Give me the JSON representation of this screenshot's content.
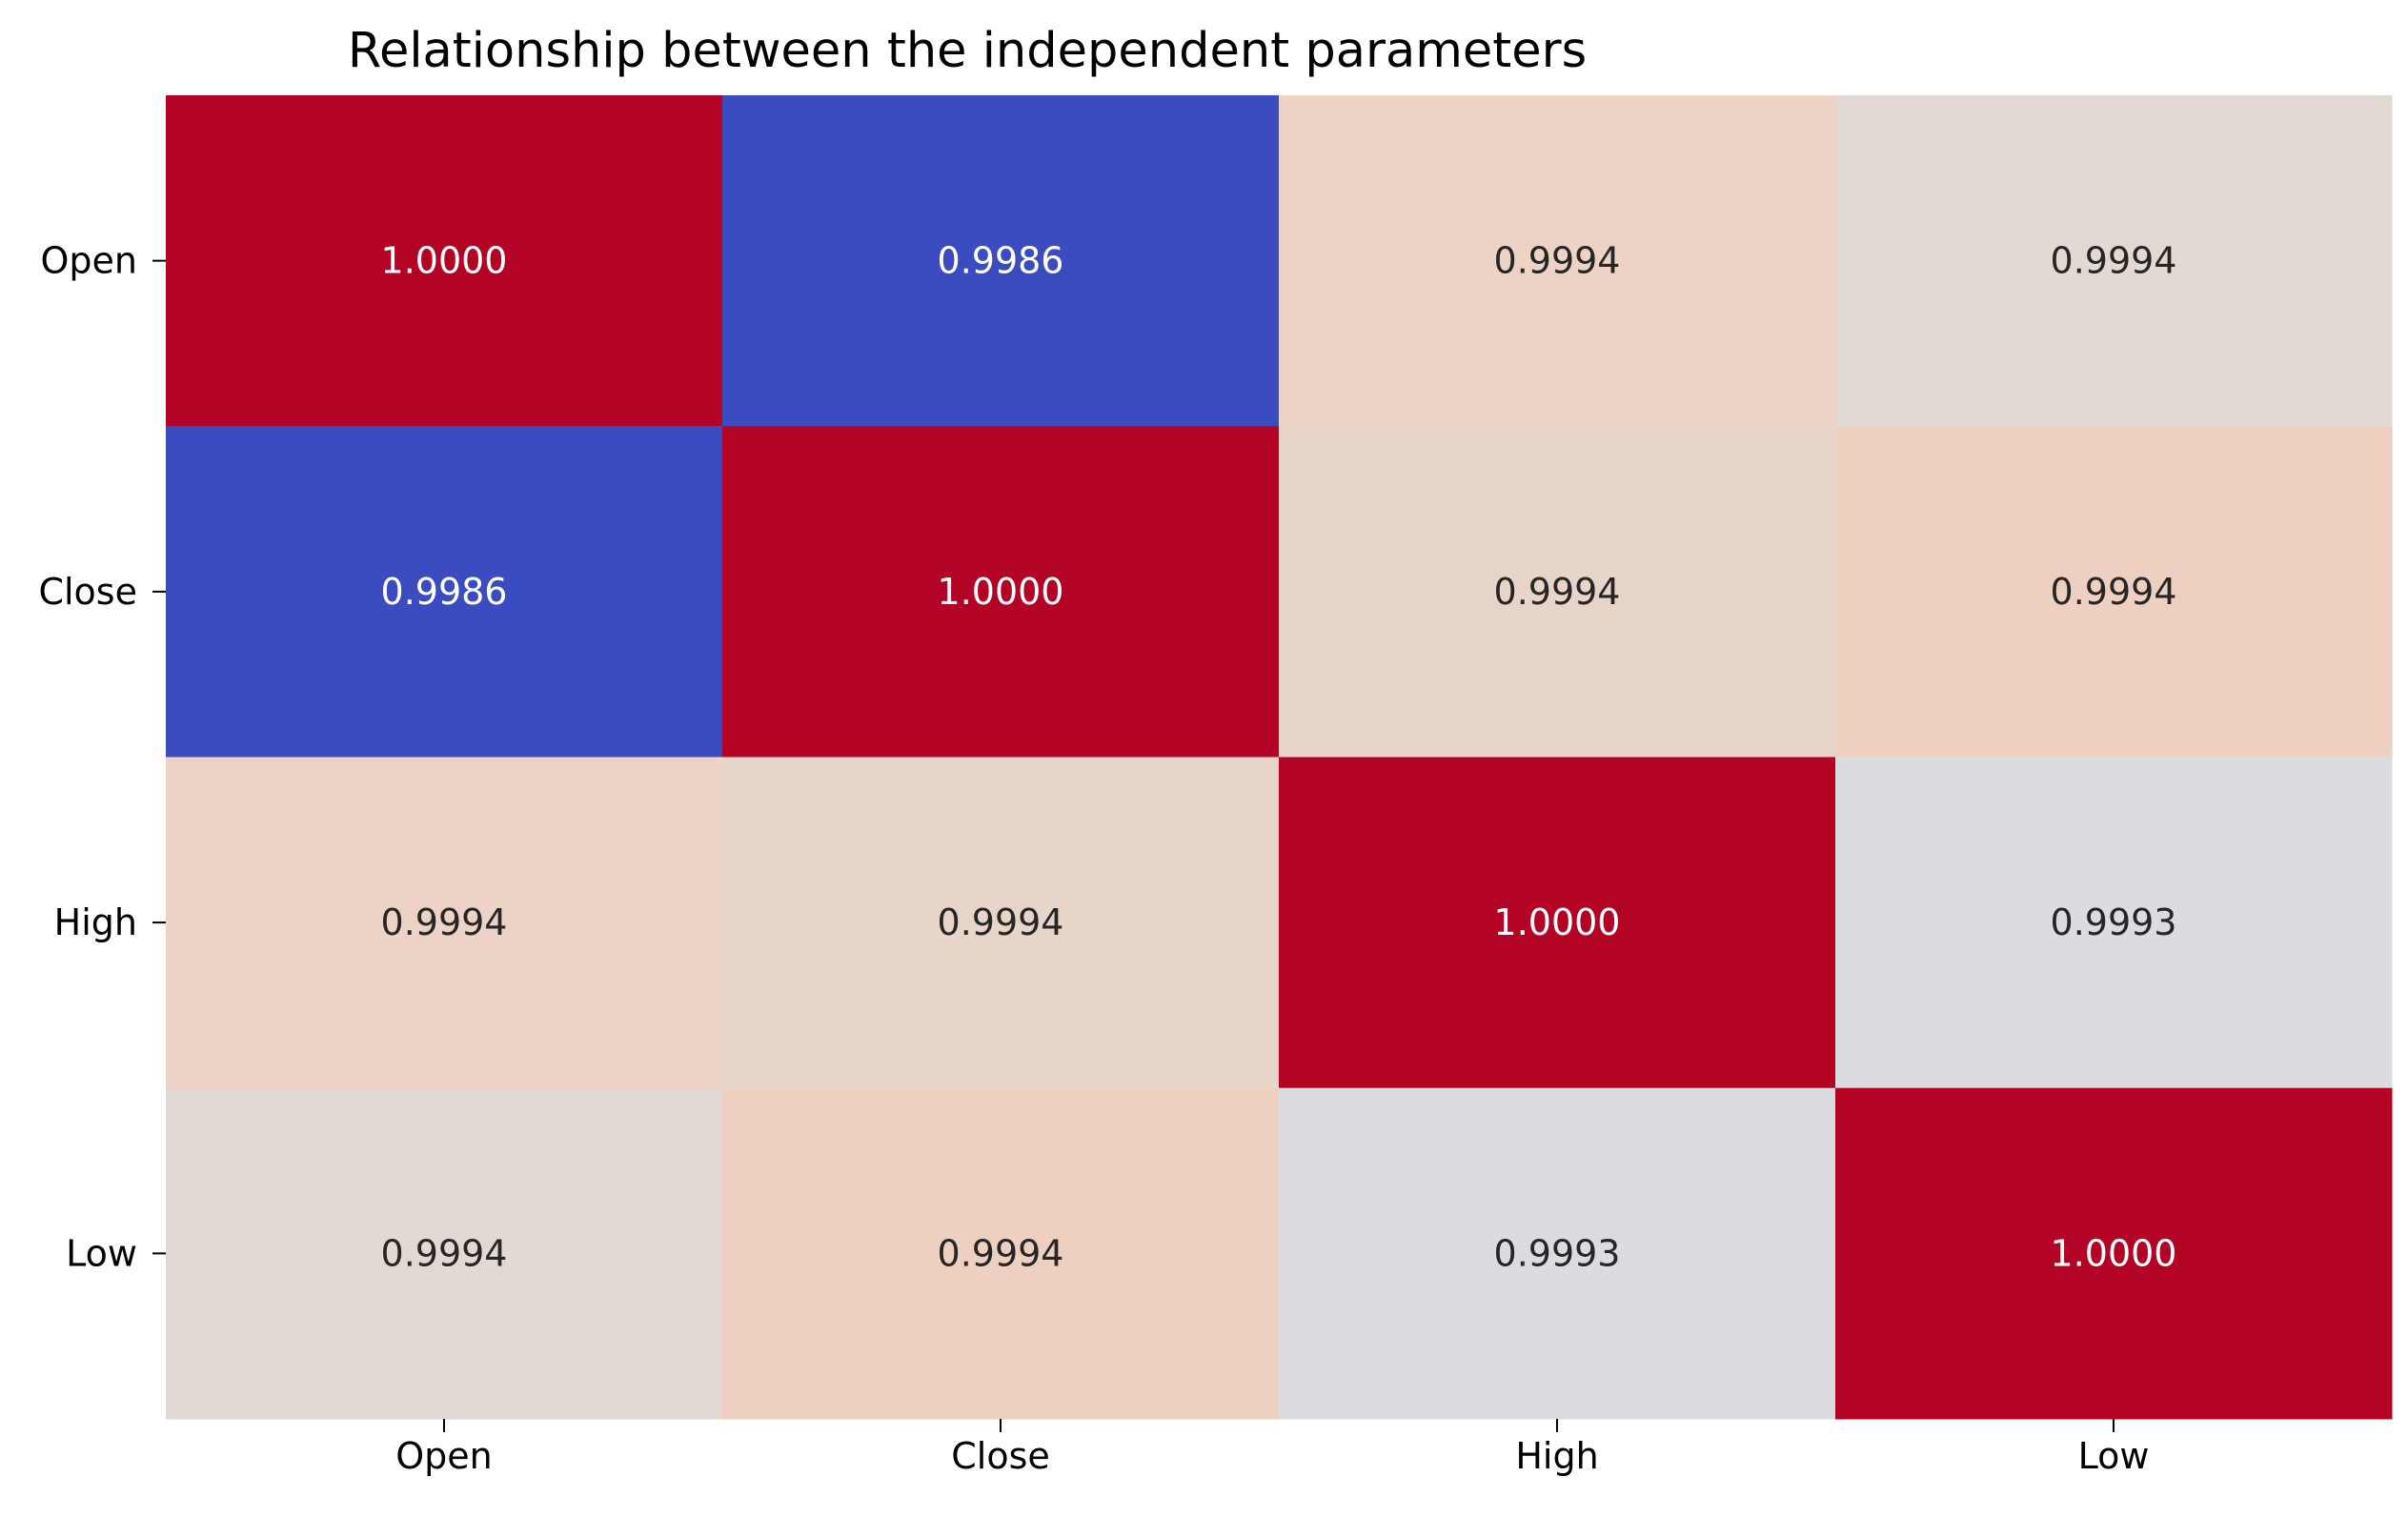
{
  "chart_data": {
    "type": "heatmap",
    "title": "Relationship between the independent parameters",
    "x_labels": [
      "Open",
      "Close",
      "High",
      "Low"
    ],
    "y_labels": [
      "Open",
      "Close",
      "High",
      "Low"
    ],
    "values": [
      [
        1.0,
        0.9986,
        0.9994,
        0.9994
      ],
      [
        0.9986,
        1.0,
        0.9994,
        0.9994
      ],
      [
        0.9994,
        0.9994,
        1.0,
        0.9993
      ],
      [
        0.9994,
        0.9994,
        0.9993,
        1.0
      ]
    ],
    "cell_labels": [
      [
        "1.0000",
        "0.9986",
        "0.9994",
        "0.9994"
      ],
      [
        "0.9986",
        "1.0000",
        "0.9994",
        "0.9994"
      ],
      [
        "0.9994",
        "0.9994",
        "1.0000",
        "0.9993"
      ],
      [
        "0.9994",
        "0.9994",
        "0.9993",
        "1.0000"
      ]
    ],
    "cell_colors": [
      [
        "#b40426",
        "#3b4cc0",
        "#ecd3c5",
        "#e3d9d3"
      ],
      [
        "#3b4cc0",
        "#b40426",
        "#e8d5c9",
        "#eed0c0"
      ],
      [
        "#ecd3c5",
        "#e8d5c9",
        "#b40426",
        "#dadcdf"
      ],
      [
        "#e3d9d3",
        "#eed0c0",
        "#dadcdf",
        "#b40426"
      ]
    ],
    "cell_text_colors": [
      [
        "#ffffff",
        "#ffffff",
        "#262626",
        "#262626"
      ],
      [
        "#ffffff",
        "#ffffff",
        "#262626",
        "#262626"
      ],
      [
        "#262626",
        "#262626",
        "#ffffff",
        "#262626"
      ],
      [
        "#262626",
        "#262626",
        "#262626",
        "#ffffff"
      ]
    ],
    "colormap": "coolwarm",
    "colorbar": false,
    "grid": false
  }
}
